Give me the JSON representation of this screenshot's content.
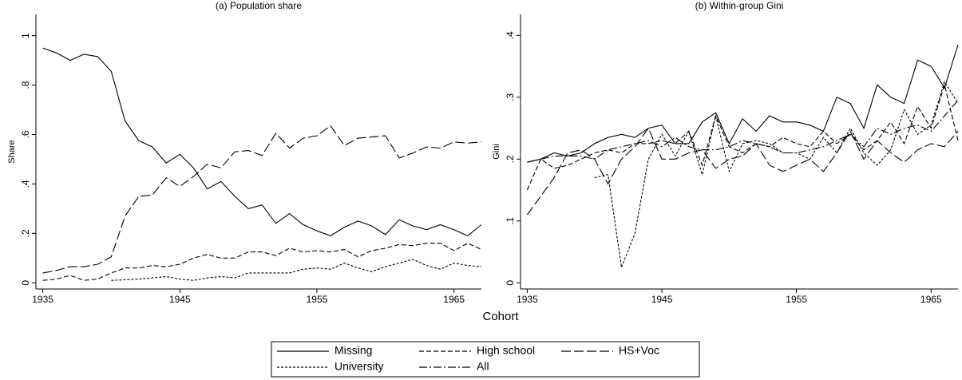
{
  "chart_data": [
    {
      "type": "line",
      "title": "(a) Population share",
      "ylabel": "Share",
      "xlabel": "Cohort",
      "x": [
        1935,
        1936,
        1937,
        1938,
        1939,
        1940,
        1941,
        1942,
        1943,
        1944,
        1945,
        1946,
        1947,
        1948,
        1949,
        1950,
        1951,
        1952,
        1953,
        1954,
        1955,
        1956,
        1957,
        1958,
        1959,
        1960,
        1961,
        1962,
        1963,
        1964,
        1965,
        1966,
        1967
      ],
      "xlim": [
        1934.5,
        1967
      ],
      "xticks": [
        1935,
        1945,
        1955,
        1965
      ],
      "ylim": [
        -0.025,
        1.086
      ],
      "yticks": [
        0,
        {
          "value": 0.2,
          "label": ".2"
        },
        {
          "value": 0.4,
          "label": ".4"
        },
        {
          "value": 0.6,
          "label": ".6"
        },
        {
          "value": 0.8,
          "label": ".8"
        },
        1
      ],
      "series": [
        {
          "color": "#000000",
          "dash": "none",
          "values": [
            0.95,
            0.93,
            0.9,
            0.925,
            0.915,
            0.855,
            0.655,
            0.575,
            0.55,
            0.485,
            0.52,
            0.465,
            0.38,
            0.41,
            0.35,
            0.3,
            0.315,
            0.24,
            0.28,
            0.235,
            0.21,
            0.19,
            0.225,
            0.25,
            0.23,
            0.195,
            0.255,
            0.23,
            0.215,
            0.235,
            0.215,
            0.19,
            0.235
          ]
        },
        {
          "color": "#000000",
          "dash": "6,3",
          "values": [
            0.01,
            0.015,
            0.03,
            0.01,
            0.015,
            0.04,
            0.06,
            0.06,
            0.07,
            0.065,
            0.075,
            0.1,
            0.115,
            0.1,
            0.1,
            0.125,
            0.125,
            0.11,
            0.14,
            0.125,
            0.13,
            0.125,
            0.135,
            0.105,
            0.13,
            0.14,
            0.155,
            0.15,
            0.16,
            0.16,
            0.13,
            0.16,
            0.135
          ]
        },
        {
          "color": "#000000",
          "dash": "12,4",
          "values": [
            0.04,
            0.05,
            0.065,
            0.065,
            0.075,
            0.105,
            0.27,
            0.35,
            0.355,
            0.425,
            0.39,
            0.43,
            0.48,
            0.465,
            0.53,
            0.535,
            0.515,
            0.605,
            0.545,
            0.585,
            0.595,
            0.635,
            0.555,
            0.585,
            0.59,
            0.595,
            0.505,
            0.525,
            0.55,
            0.545,
            0.57,
            0.565,
            0.57
          ]
        },
        {
          "color": "#000000",
          "dash": "3,2",
          "values": [
            null,
            null,
            null,
            null,
            null,
            0.01,
            0.012,
            0.015,
            0.02,
            0.025,
            0.015,
            0.01,
            0.02,
            0.025,
            0.02,
            0.04,
            0.04,
            0.04,
            0.04,
            0.055,
            0.06,
            0.055,
            0.08,
            0.06,
            0.045,
            0.065,
            0.08,
            0.095,
            0.07,
            0.055,
            0.08,
            0.07,
            0.065
          ]
        }
      ]
    },
    {
      "type": "line",
      "title": "(b) Within-group Gini",
      "ylabel": "Gini",
      "x": [
        1935,
        1936,
        1937,
        1938,
        1939,
        1940,
        1941,
        1942,
        1943,
        1944,
        1945,
        1946,
        1947,
        1948,
        1949,
        1950,
        1951,
        1952,
        1953,
        1954,
        1955,
        1956,
        1957,
        1958,
        1959,
        1960,
        1961,
        1962,
        1963,
        1964,
        1965,
        1966,
        1967
      ],
      "xlim": [
        1934.5,
        1967
      ],
      "xticks": [
        1935,
        1945,
        1955,
        1965
      ],
      "ylim": [
        -0.01,
        0.434
      ],
      "yticks": [
        0,
        {
          "value": 0.1,
          "label": ".1"
        },
        {
          "value": 0.2,
          "label": ".2"
        },
        {
          "value": 0.3,
          "label": ".3"
        },
        {
          "value": 0.4,
          "label": ".4"
        }
      ],
      "series": [
        {
          "name": "Missing",
          "color": "#000000",
          "dash": "none",
          "values": [
            0.195,
            0.2,
            0.21,
            0.205,
            0.21,
            0.225,
            0.235,
            0.24,
            0.235,
            0.25,
            0.255,
            0.225,
            0.225,
            0.26,
            0.275,
            0.225,
            0.265,
            0.245,
            0.27,
            0.26,
            0.26,
            0.255,
            0.245,
            0.3,
            0.29,
            0.25,
            0.32,
            0.3,
            0.29,
            0.36,
            0.35,
            0.315,
            0.385
          ]
        },
        {
          "name": "High school",
          "color": "#000000",
          "dash": "6,3",
          "values": [
            0.15,
            0.2,
            0.185,
            0.19,
            0.2,
            0.21,
            0.215,
            0.21,
            0.225,
            0.225,
            0.23,
            0.225,
            0.245,
            0.19,
            0.27,
            0.22,
            0.21,
            0.225,
            0.22,
            0.235,
            0.225,
            0.22,
            0.245,
            0.225,
            0.24,
            0.215,
            0.23,
            0.26,
            0.225,
            0.285,
            0.25,
            0.32,
            0.23
          ]
        },
        {
          "name": "HS+Voc",
          "color": "#000000",
          "dash": "12,4",
          "values": [
            0.11,
            0.14,
            0.17,
            0.21,
            0.215,
            0.2,
            0.16,
            0.2,
            0.22,
            0.25,
            0.2,
            0.2,
            0.21,
            0.215,
            0.185,
            0.2,
            0.205,
            0.225,
            0.19,
            0.18,
            0.19,
            0.2,
            0.18,
            0.21,
            0.245,
            0.2,
            0.23,
            0.21,
            0.195,
            0.215,
            0.225,
            0.22,
            0.245
          ]
        },
        {
          "name": "University",
          "color": "#000000",
          "dash": "3,2",
          "values": [
            null,
            null,
            null,
            null,
            null,
            0.17,
            0.175,
            0.025,
            0.08,
            0.2,
            0.24,
            0.205,
            0.245,
            0.175,
            0.27,
            0.18,
            0.225,
            0.23,
            0.225,
            0.21,
            0.21,
            0.2,
            0.235,
            0.21,
            0.25,
            0.21,
            0.19,
            0.215,
            0.28,
            0.24,
            0.255,
            0.325,
            0.29
          ]
        },
        {
          "name": "All",
          "color": "#000000",
          "dash": "10,3,2,3",
          "values": [
            0.195,
            0.2,
            0.205,
            0.205,
            0.205,
            0.2,
            0.215,
            0.22,
            0.225,
            0.23,
            0.22,
            0.235,
            0.22,
            0.215,
            0.215,
            0.22,
            0.23,
            0.225,
            0.22,
            0.21,
            0.21,
            0.215,
            0.22,
            0.23,
            0.24,
            0.22,
            0.25,
            0.24,
            0.25,
            0.255,
            0.245,
            0.27,
            0.295
          ]
        }
      ]
    }
  ]
}
